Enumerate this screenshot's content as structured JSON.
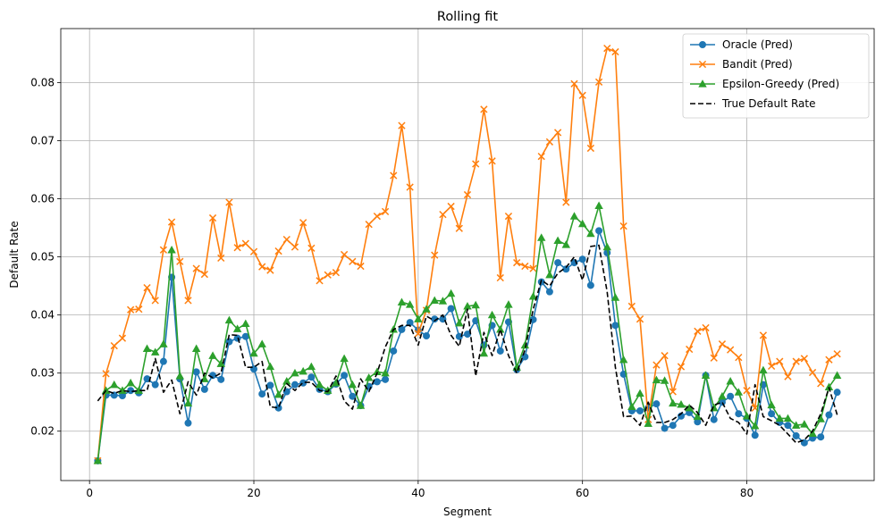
{
  "chart_data": {
    "type": "line",
    "title": "Rolling fit",
    "xlabel": "Segment",
    "ylabel": "Default Rate",
    "xlim": [
      -3.5,
      95.5
    ],
    "ylim": [
      0.0115,
      0.0893
    ],
    "xticks": [
      0,
      20,
      40,
      60,
      80
    ],
    "yticks": [
      0.02,
      0.03,
      0.04,
      0.05,
      0.06,
      0.07,
      0.08
    ],
    "grid": true,
    "legend_position": "upper right",
    "x_start": 1,
    "series": [
      {
        "name": "Oracle (Pred)",
        "color": "#1f77b4",
        "marker": "circle",
        "line_style": "solid",
        "values": [
          0.0149,
          0.0262,
          0.0262,
          0.0261,
          0.027,
          0.0266,
          0.029,
          0.028,
          0.032,
          0.0465,
          0.029,
          0.0214,
          0.0302,
          0.0272,
          0.0296,
          0.0289,
          0.0354,
          0.036,
          0.0363,
          0.0307,
          0.0264,
          0.0279,
          0.024,
          0.0268,
          0.028,
          0.0283,
          0.0293,
          0.0272,
          0.0268,
          0.0281,
          0.0296,
          0.026,
          0.0244,
          0.0277,
          0.0285,
          0.0289,
          0.0338,
          0.0375,
          0.0387,
          0.0374,
          0.0364,
          0.0393,
          0.0393,
          0.0411,
          0.0363,
          0.0367,
          0.039,
          0.0348,
          0.0382,
          0.0338,
          0.0388,
          0.0306,
          0.0328,
          0.0392,
          0.0457,
          0.044,
          0.049,
          0.0479,
          0.049,
          0.0496,
          0.0451,
          0.0545,
          0.0507,
          0.0382,
          0.0298,
          0.0235,
          0.0235,
          0.024,
          0.0247,
          0.0205,
          0.021,
          0.0226,
          0.0232,
          0.0216,
          0.0296,
          0.022,
          0.025,
          0.026,
          0.023,
          0.0222,
          0.0193,
          0.028,
          0.023,
          0.0215,
          0.021,
          0.0192,
          0.018,
          0.0188,
          0.019,
          0.0228,
          0.0267
        ]
      },
      {
        "name": "Bandit (Pred)",
        "color": "#ff7f0e",
        "marker": "x",
        "line_style": "solid",
        "values": [
          0.0149,
          0.0299,
          0.0347,
          0.036,
          0.0409,
          0.041,
          0.0447,
          0.0425,
          0.0512,
          0.056,
          0.0492,
          0.0425,
          0.048,
          0.047,
          0.0567,
          0.0498,
          0.0594,
          0.0516,
          0.0523,
          0.0509,
          0.0483,
          0.0477,
          0.051,
          0.053,
          0.0517,
          0.0559,
          0.0515,
          0.0459,
          0.0469,
          0.0473,
          0.0504,
          0.0492,
          0.0484,
          0.0556,
          0.057,
          0.0578,
          0.064,
          0.0726,
          0.062,
          0.0368,
          0.0408,
          0.0503,
          0.0573,
          0.0587,
          0.0549,
          0.0607,
          0.066,
          0.0754,
          0.0665,
          0.0464,
          0.057,
          0.049,
          0.0484,
          0.048,
          0.0673,
          0.0698,
          0.0714,
          0.0594,
          0.0798,
          0.0778,
          0.0687,
          0.0801,
          0.0859,
          0.0853,
          0.0553,
          0.0415,
          0.0393,
          0.022,
          0.0314,
          0.033,
          0.0268,
          0.0311,
          0.0341,
          0.0372,
          0.0378,
          0.0326,
          0.035,
          0.034,
          0.0327,
          0.027,
          0.024,
          0.0365,
          0.0312,
          0.032,
          0.0294,
          0.032,
          0.0325,
          0.0301,
          0.0282,
          0.0323,
          0.0333
        ]
      },
      {
        "name": "Epsilon-Greedy (Pred)",
        "color": "#2ca02c",
        "marker": "triangle",
        "line_style": "solid",
        "values": [
          0.0149,
          0.027,
          0.028,
          0.027,
          0.0283,
          0.027,
          0.0342,
          0.0336,
          0.035,
          0.0512,
          0.0295,
          0.0248,
          0.0342,
          0.029,
          0.033,
          0.0316,
          0.0391,
          0.0376,
          0.0385,
          0.0334,
          0.035,
          0.0311,
          0.0263,
          0.0286,
          0.03,
          0.0303,
          0.0311,
          0.028,
          0.027,
          0.0283,
          0.0325,
          0.028,
          0.0244,
          0.0292,
          0.0302,
          0.03,
          0.0375,
          0.0422,
          0.0418,
          0.0393,
          0.041,
          0.0425,
          0.0424,
          0.0437,
          0.0386,
          0.0415,
          0.0417,
          0.0334,
          0.04,
          0.0375,
          0.0418,
          0.031,
          0.0348,
          0.0432,
          0.0533,
          0.0469,
          0.0528,
          0.0521,
          0.057,
          0.0557,
          0.054,
          0.0588,
          0.0517,
          0.043,
          0.0323,
          0.0242,
          0.0265,
          0.0213,
          0.0288,
          0.0287,
          0.0248,
          0.0246,
          0.024,
          0.0225,
          0.0296,
          0.024,
          0.026,
          0.0286,
          0.0267,
          0.0226,
          0.0209,
          0.0305,
          0.0245,
          0.0222,
          0.0222,
          0.021,
          0.0212,
          0.0196,
          0.0221,
          0.0276,
          0.0296
        ]
      },
      {
        "name": "True Default Rate",
        "color": "#000000",
        "marker": "none",
        "line_style": "dashed",
        "values": [
          0.0252,
          0.027,
          0.0265,
          0.027,
          0.0268,
          0.027,
          0.027,
          0.0325,
          0.0267,
          0.0288,
          0.023,
          0.0285,
          0.0262,
          0.03,
          0.0292,
          0.03,
          0.0366,
          0.0365,
          0.031,
          0.031,
          0.032,
          0.0242,
          0.024,
          0.0282,
          0.027,
          0.0284,
          0.0284,
          0.027,
          0.0268,
          0.0295,
          0.0252,
          0.0238,
          0.029,
          0.0268,
          0.03,
          0.0345,
          0.0375,
          0.0382,
          0.0382,
          0.0348,
          0.0398,
          0.039,
          0.04,
          0.0365,
          0.0346,
          0.041,
          0.0295,
          0.037,
          0.033,
          0.0375,
          0.033,
          0.03,
          0.034,
          0.041,
          0.046,
          0.045,
          0.0472,
          0.0482,
          0.05,
          0.046,
          0.0518,
          0.052,
          0.044,
          0.031,
          0.0225,
          0.0226,
          0.021,
          0.025,
          0.0215,
          0.0215,
          0.022,
          0.023,
          0.0245,
          0.0232,
          0.021,
          0.0245,
          0.025,
          0.0222,
          0.0215,
          0.0195,
          0.028,
          0.0225,
          0.0218,
          0.021,
          0.0195,
          0.018,
          0.0185,
          0.02,
          0.023,
          0.0275,
          0.0228
        ]
      }
    ]
  }
}
